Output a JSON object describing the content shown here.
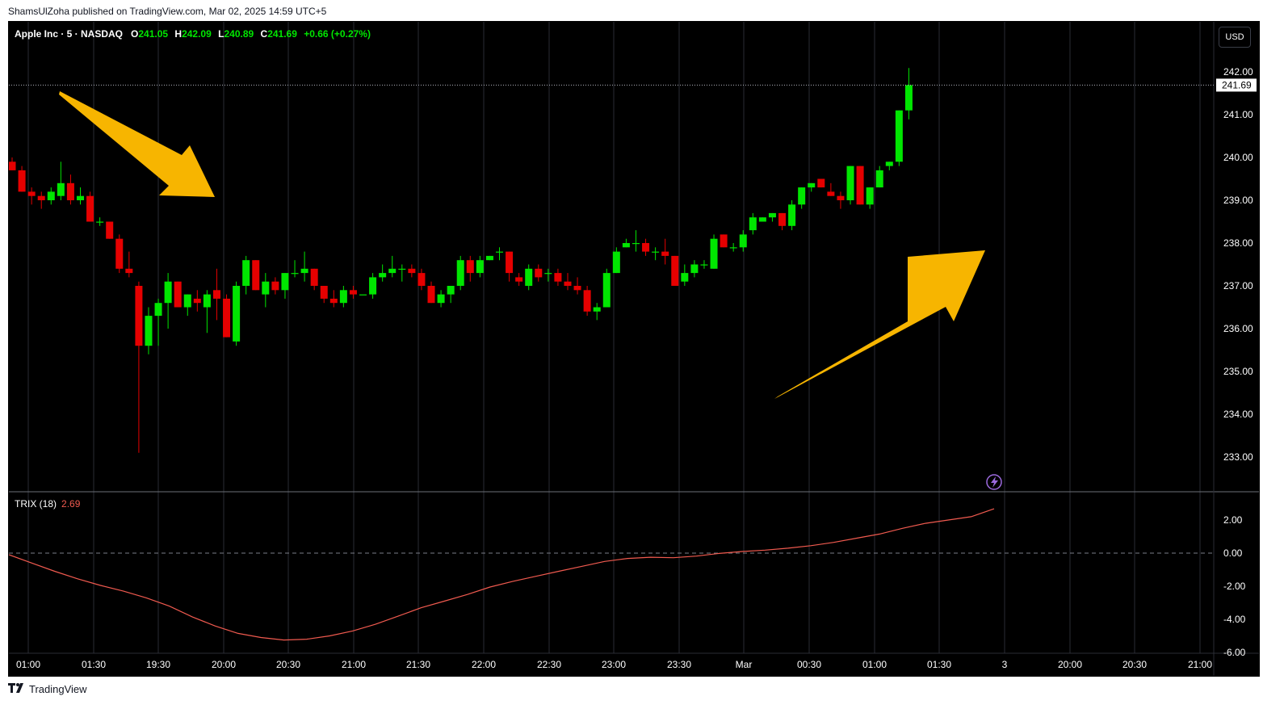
{
  "header": {
    "published": "ShamsUlZoha published on TradingView.com, Mar 02, 2025 14:59 UTC+5"
  },
  "legend": {
    "symbol": "Apple Inc · 5 · NASDAQ",
    "open_label": "O",
    "open": "241.05",
    "high_label": "H",
    "high": "242.09",
    "low_label": "L",
    "low": "240.89",
    "close_label": "C",
    "close": "241.69",
    "change": "+0.66 (+0.27%)"
  },
  "currency": "USD",
  "last_price_label": "241.69",
  "trix": {
    "name": "TRIX (18)",
    "value": "2.69"
  },
  "footer": {
    "brand": "TradingView"
  },
  "colors": {
    "up": "#00e600",
    "down": "#e60000",
    "trix": "#f05a4f",
    "arrow": "#f7b500",
    "background": "#000000"
  },
  "icons": [
    "lightning-icon",
    "tradingview-logo-icon"
  ],
  "chart_data": [
    {
      "type": "candlestick",
      "x_tick_labels": [
        "01:00",
        "01:30",
        "19:30",
        "20:00",
        "20:30",
        "21:00",
        "21:30",
        "22:00",
        "22:30",
        "23:00",
        "23:30",
        "Mar",
        "00:30",
        "01:00",
        "01:30",
        "3",
        "20:00",
        "20:30",
        "21:00"
      ],
      "y_tick_labels": [
        "242.00",
        "241.00",
        "240.00",
        "239.00",
        "238.00",
        "237.00",
        "236.00",
        "235.00",
        "234.00",
        "233.00"
      ],
      "ylim": [
        232.2,
        243.0
      ],
      "candles": [
        [
          239.9,
          240.0,
          239.7,
          239.7
        ],
        [
          239.7,
          239.8,
          239.2,
          239.2
        ],
        [
          239.2,
          239.3,
          238.9,
          239.1
        ],
        [
          239.1,
          239.2,
          238.8,
          239.0
        ],
        [
          239.0,
          239.3,
          238.9,
          239.2
        ],
        [
          239.1,
          239.9,
          239.0,
          239.4
        ],
        [
          239.4,
          239.6,
          238.9,
          239.0
        ],
        [
          239.0,
          239.3,
          238.9,
          239.1
        ],
        [
          239.1,
          239.2,
          238.5,
          238.5
        ],
        [
          238.5,
          238.6,
          238.4,
          238.5
        ],
        [
          238.5,
          238.5,
          238.1,
          238.1
        ],
        [
          238.1,
          238.2,
          237.3,
          237.4
        ],
        [
          237.4,
          237.8,
          237.2,
          237.3
        ],
        [
          237.0,
          237.1,
          233.1,
          235.6
        ],
        [
          235.6,
          236.5,
          235.4,
          236.3
        ],
        [
          236.3,
          236.7,
          235.6,
          236.6
        ],
        [
          236.6,
          237.3,
          236.0,
          237.1
        ],
        [
          237.1,
          237.1,
          236.5,
          236.5
        ],
        [
          236.5,
          236.8,
          236.3,
          236.8
        ],
        [
          236.7,
          236.9,
          236.4,
          236.6
        ],
        [
          236.5,
          236.9,
          235.9,
          236.8
        ],
        [
          236.9,
          237.4,
          236.2,
          236.7
        ],
        [
          236.7,
          236.8,
          235.8,
          235.8
        ],
        [
          235.7,
          237.1,
          235.6,
          237.0
        ],
        [
          237.0,
          237.7,
          236.8,
          237.6
        ],
        [
          237.6,
          237.6,
          236.9,
          236.9
        ],
        [
          236.8,
          237.3,
          236.5,
          237.1
        ],
        [
          237.1,
          237.2,
          236.8,
          236.9
        ],
        [
          236.9,
          237.3,
          236.7,
          237.3
        ],
        [
          237.3,
          237.6,
          237.2,
          237.3
        ],
        [
          237.3,
          237.8,
          237.1,
          237.4
        ],
        [
          237.4,
          237.4,
          236.9,
          237.0
        ],
        [
          237.0,
          237.0,
          236.6,
          236.7
        ],
        [
          236.7,
          236.9,
          236.5,
          236.6
        ],
        [
          236.6,
          237.0,
          236.5,
          236.9
        ],
        [
          236.9,
          237.0,
          236.7,
          236.8
        ],
        [
          236.8,
          236.8,
          236.8,
          236.8
        ],
        [
          236.8,
          237.3,
          236.7,
          237.2
        ],
        [
          237.2,
          237.5,
          237.1,
          237.3
        ],
        [
          237.3,
          237.7,
          237.2,
          237.4
        ],
        [
          237.4,
          237.5,
          237.1,
          237.4
        ],
        [
          237.4,
          237.5,
          237.2,
          237.3
        ],
        [
          237.3,
          237.4,
          236.9,
          237.0
        ],
        [
          237.0,
          237.1,
          236.6,
          236.6
        ],
        [
          236.6,
          236.9,
          236.5,
          236.8
        ],
        [
          236.8,
          237.0,
          236.6,
          237.0
        ],
        [
          237.0,
          237.7,
          236.9,
          237.6
        ],
        [
          237.6,
          237.7,
          237.1,
          237.3
        ],
        [
          237.3,
          237.7,
          237.2,
          237.6
        ],
        [
          237.6,
          237.7,
          237.6,
          237.7
        ],
        [
          237.8,
          237.9,
          237.6,
          237.8
        ],
        [
          237.8,
          237.8,
          237.1,
          237.3
        ],
        [
          237.2,
          237.3,
          237.0,
          237.1
        ],
        [
          237.0,
          237.5,
          236.9,
          237.4
        ],
        [
          237.4,
          237.5,
          237.1,
          237.2
        ],
        [
          237.3,
          237.4,
          237.1,
          237.3
        ],
        [
          237.3,
          237.4,
          237.0,
          237.1
        ],
        [
          237.1,
          237.3,
          236.9,
          237.0
        ],
        [
          237.0,
          237.2,
          236.8,
          236.9
        ],
        [
          236.9,
          237.0,
          236.3,
          236.4
        ],
        [
          236.4,
          236.6,
          236.2,
          236.5
        ],
        [
          236.5,
          237.4,
          236.5,
          237.3
        ],
        [
          237.3,
          237.9,
          237.3,
          237.8
        ],
        [
          237.9,
          238.1,
          237.9,
          238.0
        ],
        [
          238.0,
          238.3,
          237.8,
          238.0
        ],
        [
          238.0,
          238.1,
          237.7,
          237.8
        ],
        [
          237.8,
          237.9,
          237.6,
          237.8
        ],
        [
          237.8,
          238.1,
          237.5,
          237.7
        ],
        [
          237.7,
          237.7,
          237.0,
          237.0
        ],
        [
          237.1,
          237.5,
          237.0,
          237.3
        ],
        [
          237.3,
          237.6,
          237.2,
          237.5
        ],
        [
          237.5,
          237.6,
          237.4,
          237.5
        ],
        [
          237.4,
          238.2,
          237.4,
          238.1
        ],
        [
          238.2,
          238.2,
          237.9,
          237.9
        ],
        [
          237.9,
          238.0,
          237.8,
          237.9
        ],
        [
          237.9,
          238.3,
          237.8,
          238.2
        ],
        [
          238.3,
          238.7,
          238.2,
          238.6
        ],
        [
          238.5,
          238.6,
          238.5,
          238.6
        ],
        [
          238.6,
          238.7,
          238.5,
          238.7
        ],
        [
          238.7,
          238.7,
          238.3,
          238.4
        ],
        [
          238.4,
          239.0,
          238.3,
          238.9
        ],
        [
          238.9,
          239.3,
          238.8,
          239.3
        ],
        [
          239.3,
          239.4,
          239.2,
          239.4
        ],
        [
          239.5,
          239.5,
          239.3,
          239.3
        ],
        [
          239.2,
          239.4,
          239.1,
          239.1
        ],
        [
          239.1,
          239.2,
          238.8,
          239.0
        ],
        [
          239.0,
          239.8,
          238.9,
          239.8
        ],
        [
          239.8,
          239.8,
          238.9,
          238.9
        ],
        [
          238.9,
          239.3,
          238.8,
          239.3
        ],
        [
          239.3,
          239.8,
          239.3,
          239.7
        ],
        [
          239.8,
          239.9,
          239.7,
          239.9
        ],
        [
          239.9,
          241.1,
          239.8,
          241.1
        ],
        [
          241.1,
          242.09,
          240.89,
          241.69
        ]
      ]
    },
    {
      "type": "line",
      "name": "TRIX (18)",
      "y_tick_labels": [
        "2.00",
        "0.00",
        "-2.00",
        "-4.00",
        "-6.00"
      ],
      "ylim": [
        -6.0,
        3.0
      ],
      "values": [
        -0.1,
        -0.6,
        -1.1,
        -1.55,
        -1.95,
        -2.3,
        -2.7,
        -3.2,
        -3.85,
        -4.4,
        -4.85,
        -5.1,
        -5.25,
        -5.2,
        -5.0,
        -4.7,
        -4.3,
        -3.8,
        -3.3,
        -2.9,
        -2.5,
        -2.05,
        -1.7,
        -1.4,
        -1.1,
        -0.8,
        -0.5,
        -0.32,
        -0.25,
        -0.28,
        -0.18,
        -0.02,
        0.1,
        0.18,
        0.3,
        0.45,
        0.65,
        0.9,
        1.15,
        1.5,
        1.8,
        2.0,
        2.2,
        2.68
      ],
      "zero_line": true
    }
  ]
}
